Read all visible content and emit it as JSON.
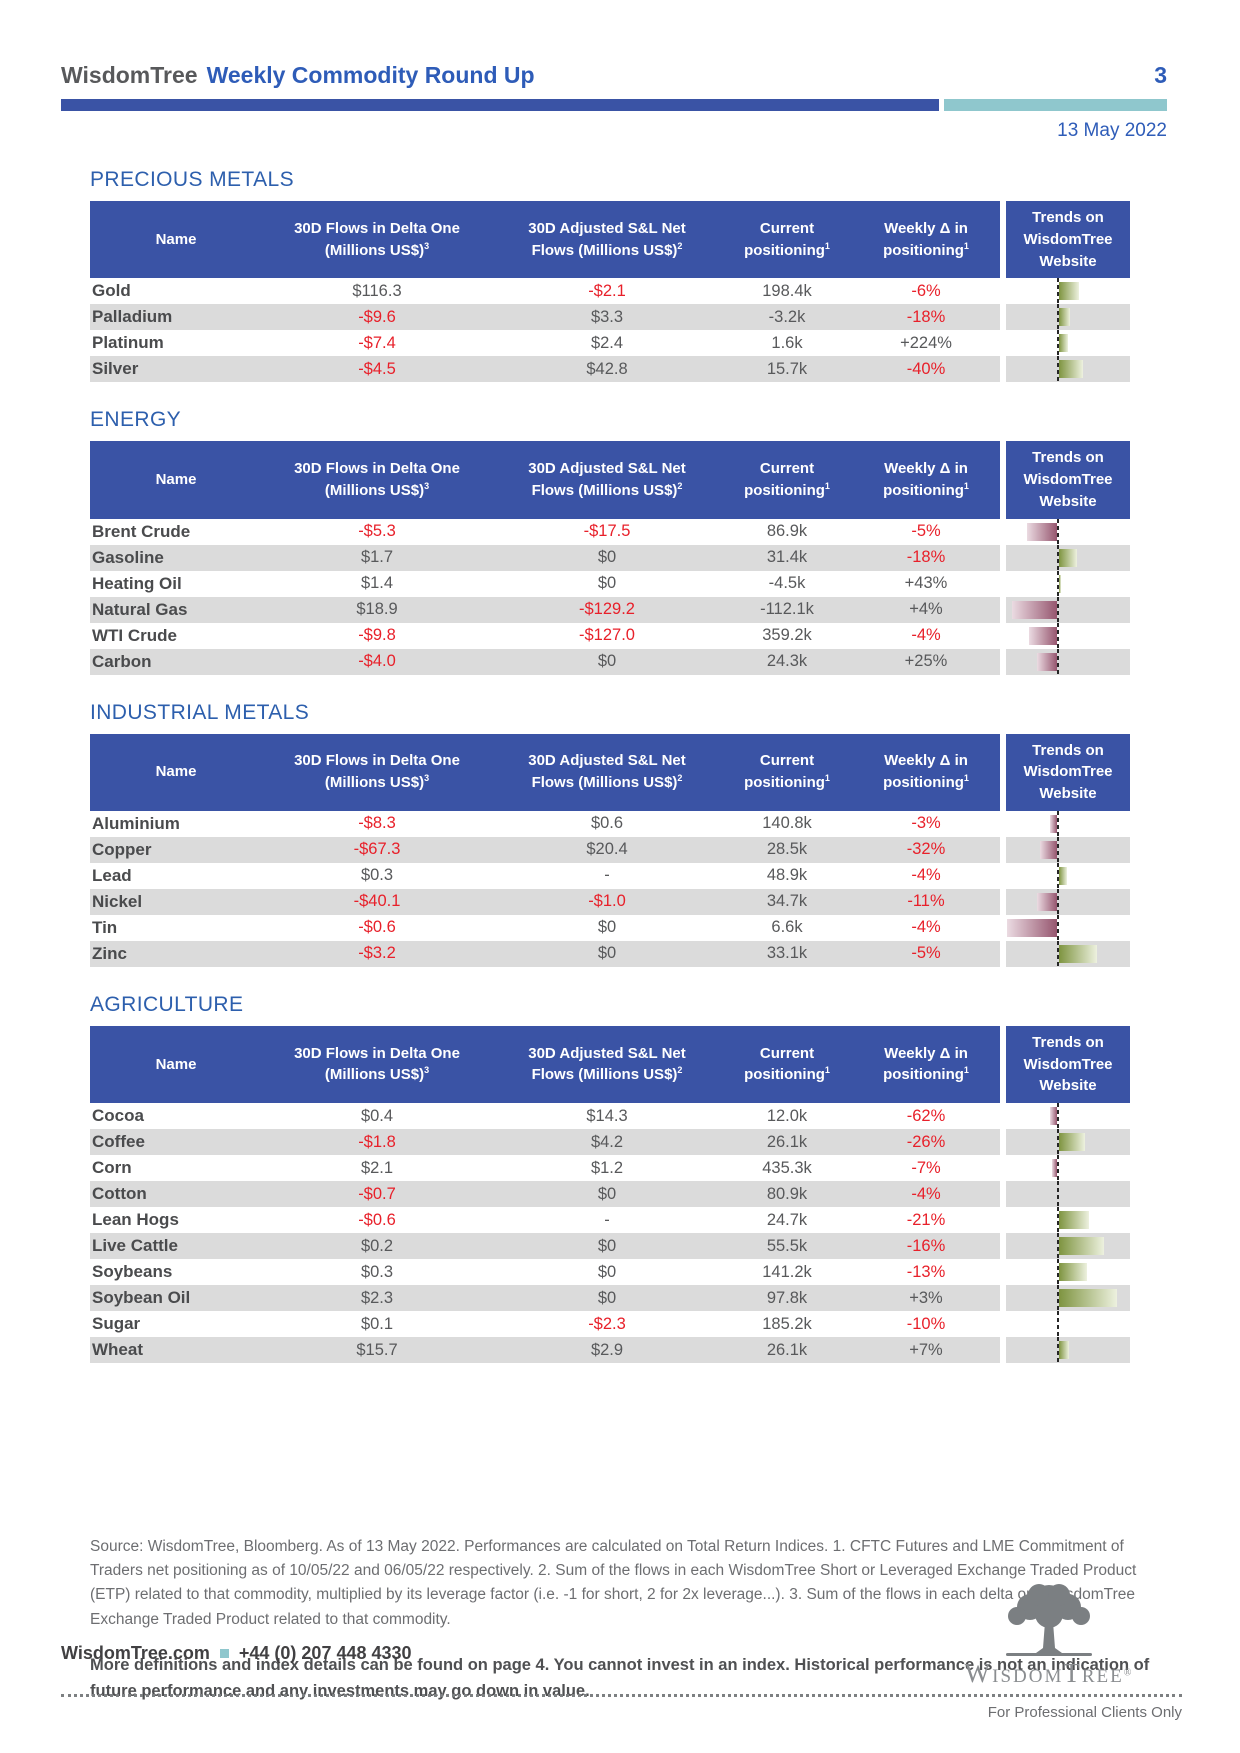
{
  "header": {
    "brand": "WisdomTree",
    "title": "Weekly Commodity Round Up",
    "page_number": "3",
    "date": "13 May 2022"
  },
  "table_headers": {
    "columns": [
      {
        "text": "Name"
      },
      {
        "text": "30D Flows in Delta One (Millions US$)",
        "sup": "3"
      },
      {
        "text": "30D Adjusted S&L Net Flows (Millions US$)",
        "sup": "2"
      },
      {
        "text": "Current positioning",
        "sup": "1"
      },
      {
        "text": "Weekly Δ in positioning",
        "sup": "1"
      },
      {
        "text": "Trends on WisdomTree Website"
      }
    ]
  },
  "sections": [
    {
      "title": "PRECIOUS METALS",
      "rows": [
        {
          "name": "Gold",
          "delta_one": "$116.3",
          "adjusted": "-$2.1",
          "positioning": "198.4k",
          "weekly": "-6%",
          "trend": 20
        },
        {
          "name": "Palladium",
          "delta_one": "-$9.6",
          "adjusted": "$3.3",
          "positioning": "-3.2k",
          "weekly": "-18%",
          "trend": 11
        },
        {
          "name": "Platinum",
          "delta_one": "-$7.4",
          "adjusted": "$2.4",
          "positioning": "1.6k",
          "weekly": "+224%",
          "trend": 9
        },
        {
          "name": "Silver",
          "delta_one": "-$4.5",
          "adjusted": "$42.8",
          "positioning": "15.7k",
          "weekly": "-40%",
          "trend": 24
        }
      ]
    },
    {
      "title": "ENERGY",
      "rows": [
        {
          "name": "Brent Crude",
          "delta_one": "-$5.3",
          "adjusted": "-$17.5",
          "positioning": "86.9k",
          "weekly": "-5%",
          "trend": -30
        },
        {
          "name": "Gasoline",
          "delta_one": "$1.7",
          "adjusted": "$0",
          "positioning": "31.4k",
          "weekly": "-18%",
          "trend": 18
        },
        {
          "name": "Heating Oil",
          "delta_one": "$1.4",
          "adjusted": "$0",
          "positioning": "-4.5k",
          "weekly": "+43%",
          "trend": 2
        },
        {
          "name": "Natural Gas",
          "delta_one": "$18.9",
          "adjusted": "-$129.2",
          "positioning": "-112.1k",
          "weekly": "+4%",
          "trend": -45
        },
        {
          "name": "WTI Crude",
          "delta_one": "-$9.8",
          "adjusted": "-$127.0",
          "positioning": "359.2k",
          "weekly": "-4%",
          "trend": -28
        },
        {
          "name": "Carbon",
          "delta_one": "-$4.0",
          "adjusted": "$0",
          "positioning": "24.3k",
          "weekly": "+25%",
          "trend": -20
        }
      ]
    },
    {
      "title": "INDUSTRIAL METALS",
      "rows": [
        {
          "name": "Aluminium",
          "delta_one": "-$8.3",
          "adjusted": "$0.6",
          "positioning": "140.8k",
          "weekly": "-3%",
          "trend": -7
        },
        {
          "name": "Copper",
          "delta_one": "-$67.3",
          "adjusted": "$20.4",
          "positioning": "28.5k",
          "weekly": "-32%",
          "trend": -17
        },
        {
          "name": "Lead",
          "delta_one": "$0.3",
          "adjusted": "-",
          "positioning": "48.9k",
          "weekly": "-4%",
          "trend": 8
        },
        {
          "name": "Nickel",
          "delta_one": "-$40.1",
          "adjusted": "-$1.0",
          "positioning": "34.7k",
          "weekly": "-11%",
          "trend": -20
        },
        {
          "name": "Tin",
          "delta_one": "-$0.6",
          "adjusted": "$0",
          "positioning": "6.6k",
          "weekly": "-4%",
          "trend": -50
        },
        {
          "name": "Zinc",
          "delta_one": "-$3.2",
          "adjusted": "$0",
          "positioning": "33.1k",
          "weekly": "-5%",
          "trend": 38
        }
      ]
    },
    {
      "title": "AGRICULTURE",
      "rows": [
        {
          "name": "Cocoa",
          "delta_one": "$0.4",
          "adjusted": "$14.3",
          "positioning": "12.0k",
          "weekly": "-62%",
          "trend": -7
        },
        {
          "name": "Coffee",
          "delta_one": "-$1.8",
          "adjusted": "$4.2",
          "positioning": "26.1k",
          "weekly": "-26%",
          "trend": 26
        },
        {
          "name": "Corn",
          "delta_one": "$2.1",
          "adjusted": "$1.2",
          "positioning": "435.3k",
          "weekly": "-7%",
          "trend": -5
        },
        {
          "name": "Cotton",
          "delta_one": "-$0.7",
          "adjusted": "$0",
          "positioning": "80.9k",
          "weekly": "-4%",
          "trend": 0
        },
        {
          "name": "Lean Hogs",
          "delta_one": "-$0.6",
          "adjusted": "-",
          "positioning": "24.7k",
          "weekly": "-21%",
          "trend": 30
        },
        {
          "name": "Live Cattle",
          "delta_one": "$0.2",
          "adjusted": "$0",
          "positioning": "55.5k",
          "weekly": "-16%",
          "trend": 45
        },
        {
          "name": "Soybeans",
          "delta_one": "$0.3",
          "adjusted": "$0",
          "positioning": "141.2k",
          "weekly": "-13%",
          "trend": 28
        },
        {
          "name": "Soybean Oil",
          "delta_one": "$2.3",
          "adjusted": "$0",
          "positioning": "97.8k",
          "weekly": "+3%",
          "trend": 58
        },
        {
          "name": "Sugar",
          "delta_one": "$0.1",
          "adjusted": "-$2.3",
          "positioning": "185.2k",
          "weekly": "-10%",
          "trend": 0
        },
        {
          "name": "Wheat",
          "delta_one": "$15.7",
          "adjusted": "$2.9",
          "positioning": "26.1k",
          "weekly": "+7%",
          "trend": 10
        }
      ]
    }
  ],
  "footnotes": "Source: WisdomTree, Bloomberg. As of 13 May 2022. Performances are calculated on Total Return Indices. 1. CFTC Futures and LME Commitment of Traders net positioning as of 10/05/22 and 06/05/22 respectively. 2. Sum of the flows in each WisdomTree Short or Leveraged Exchange Traded Product (ETP) related to that commodity, multiplied by its leverage factor (i.e. -1 for short, 2 for 2x leverage...). 3. Sum of the flows in each delta one WisdomTree Exchange Traded Product related to that commodity.",
  "disclaimer": "More definitions and index details can be found on page 4. You cannot invest in an index. Historical performance is not an indication of future performance and any investments may go down in value.",
  "contact": {
    "website": "WisdomTree.com",
    "phone": "+44 (0) 207 448 4330"
  },
  "logo": {
    "parts": [
      "W",
      "isdom",
      "T",
      "ree"
    ],
    "registered": "®"
  },
  "professional_note": "For Professional Clients Only",
  "colors": {
    "accent_blue": "#3A53A5",
    "title_blue": "#2E5CB8",
    "teal": "#8FC7CD",
    "negative_red": "#E8202A",
    "trend_green": "#7E9440",
    "trend_maroon": "#96566F",
    "row_stripe_gray": "#DBDBDB"
  }
}
